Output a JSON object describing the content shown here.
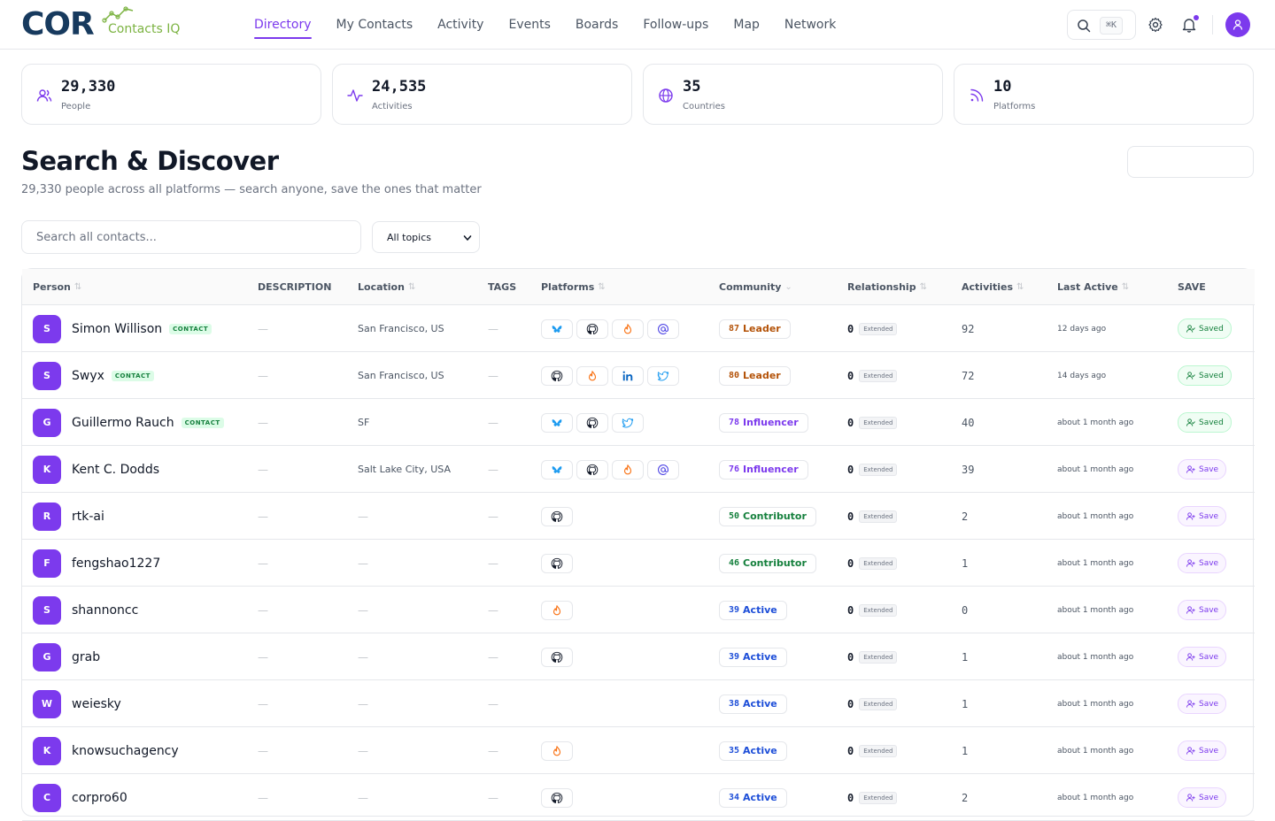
{
  "brand": {
    "name": "COR",
    "subtitle": "Contacts IQ"
  },
  "nav": [
    {
      "label": "Directory",
      "active": true
    },
    {
      "label": "My Contacts",
      "active": false
    },
    {
      "label": "Activity",
      "active": false
    },
    {
      "label": "Events",
      "active": false
    },
    {
      "label": "Boards",
      "active": false
    },
    {
      "label": "Follow-ups",
      "active": false
    },
    {
      "label": "Map",
      "active": false
    },
    {
      "label": "Network",
      "active": false
    }
  ],
  "header": {
    "shortcut": "⌘K"
  },
  "stats": [
    {
      "value": "29,330",
      "label": "People",
      "icon": "users-icon"
    },
    {
      "value": "24,535",
      "label": "Activities",
      "icon": "activity-icon"
    },
    {
      "value": "35",
      "label": "Countries",
      "icon": "globe-icon"
    },
    {
      "value": "10",
      "label": "Platforms",
      "icon": "rss-icon"
    }
  ],
  "page": {
    "title": "Search & Discover",
    "subtitle": "29,330 people across all platforms — search anyone, save the ones that matter"
  },
  "filters": {
    "search_placeholder": "Search all contacts...",
    "topic_selected": "All topics"
  },
  "table": {
    "columns": {
      "person": "Person",
      "description": "DESCRIPTION",
      "location": "Location",
      "tags": "TAGS",
      "platforms": "Platforms",
      "community": "Community",
      "relationship": "Relationship",
      "activities": "Activities",
      "last_active": "Last Active",
      "save": "SAVE"
    },
    "dash": "—",
    "rows": [
      {
        "initial": "S",
        "name": "Simon Willison",
        "contact": "CONTACT",
        "description": "—",
        "location": "San Francisco, US",
        "tags": "—",
        "platforms": [
          "bluesky",
          "github",
          "hackernews",
          "email"
        ],
        "community_score": "87",
        "community_label": "Leader",
        "community_type": "leader",
        "rel_score": "0",
        "rel_label": "Extended",
        "activities": "92",
        "last_active": "12 days ago",
        "save_label": "Saved",
        "saved": true
      },
      {
        "initial": "S",
        "name": "Swyx",
        "contact": "CONTACT",
        "description": "—",
        "location": "San Francisco, US",
        "tags": "—",
        "platforms": [
          "github",
          "hackernews",
          "linkedin",
          "twitter"
        ],
        "community_score": "80",
        "community_label": "Leader",
        "community_type": "leader",
        "rel_score": "0",
        "rel_label": "Extended",
        "activities": "72",
        "last_active": "14 days ago",
        "save_label": "Saved",
        "saved": true
      },
      {
        "initial": "G",
        "name": "Guillermo Rauch",
        "contact": "CONTACT",
        "description": "—",
        "location": "SF",
        "tags": "—",
        "platforms": [
          "bluesky",
          "github",
          "twitter"
        ],
        "community_score": "78",
        "community_label": "Influencer",
        "community_type": "influencer",
        "rel_score": "0",
        "rel_label": "Extended",
        "activities": "40",
        "last_active": "about 1 month ago",
        "save_label": "Saved",
        "saved": true
      },
      {
        "initial": "K",
        "name": "Kent C. Dodds",
        "contact": "",
        "description": "—",
        "location": "Salt Lake City, USA",
        "tags": "—",
        "platforms": [
          "bluesky",
          "github",
          "hackernews",
          "email"
        ],
        "community_score": "76",
        "community_label": "Influencer",
        "community_type": "influencer",
        "rel_score": "0",
        "rel_label": "Extended",
        "activities": "39",
        "last_active": "about 1 month ago",
        "save_label": "Save",
        "saved": false
      },
      {
        "initial": "R",
        "name": "rtk-ai",
        "contact": "",
        "description": "—",
        "location": "—",
        "tags": "—",
        "platforms": [
          "github"
        ],
        "community_score": "50",
        "community_label": "Contributor",
        "community_type": "contributor",
        "rel_score": "0",
        "rel_label": "Extended",
        "activities": "2",
        "last_active": "about 1 month ago",
        "save_label": "Save",
        "saved": false
      },
      {
        "initial": "F",
        "name": "fengshao1227",
        "contact": "",
        "description": "—",
        "location": "—",
        "tags": "—",
        "platforms": [
          "github"
        ],
        "community_score": "46",
        "community_label": "Contributor",
        "community_type": "contributor",
        "rel_score": "0",
        "rel_label": "Extended",
        "activities": "1",
        "last_active": "about 1 month ago",
        "save_label": "Save",
        "saved": false
      },
      {
        "initial": "S",
        "name": "shannoncc",
        "contact": "",
        "description": "—",
        "location": "—",
        "tags": "—",
        "platforms": [
          "hackernews"
        ],
        "community_score": "39",
        "community_label": "Active",
        "community_type": "active",
        "rel_score": "0",
        "rel_label": "Extended",
        "activities": "0",
        "last_active": "about 1 month ago",
        "save_label": "Save",
        "saved": false
      },
      {
        "initial": "G",
        "name": "grab",
        "contact": "",
        "description": "—",
        "location": "—",
        "tags": "—",
        "platforms": [
          "github"
        ],
        "community_score": "39",
        "community_label": "Active",
        "community_type": "active",
        "rel_score": "0",
        "rel_label": "Extended",
        "activities": "1",
        "last_active": "about 1 month ago",
        "save_label": "Save",
        "saved": false
      },
      {
        "initial": "W",
        "name": "weiesky",
        "contact": "",
        "description": "—",
        "location": "—",
        "tags": "—",
        "platforms": [],
        "community_score": "38",
        "community_label": "Active",
        "community_type": "active",
        "rel_score": "0",
        "rel_label": "Extended",
        "activities": "1",
        "last_active": "about 1 month ago",
        "save_label": "Save",
        "saved": false
      },
      {
        "initial": "K",
        "name": "knowsuchagency",
        "contact": "",
        "description": "—",
        "location": "—",
        "tags": "—",
        "platforms": [
          "hackernews"
        ],
        "community_score": "35",
        "community_label": "Active",
        "community_type": "active",
        "rel_score": "0",
        "rel_label": "Extended",
        "activities": "1",
        "last_active": "about 1 month ago",
        "save_label": "Save",
        "saved": false
      },
      {
        "initial": "C",
        "name": "corpro60",
        "contact": "",
        "description": "—",
        "location": "—",
        "tags": "—",
        "platforms": [
          "github"
        ],
        "community_score": "34",
        "community_label": "Active",
        "community_type": "active",
        "rel_score": "0",
        "rel_label": "Extended",
        "activities": "2",
        "last_active": "about 1 month ago",
        "save_label": "Save",
        "saved": false
      }
    ]
  },
  "colors": {
    "accent": "#7c3aed",
    "brand_dark": "#173a5e",
    "brand_green": "#7cb342"
  }
}
